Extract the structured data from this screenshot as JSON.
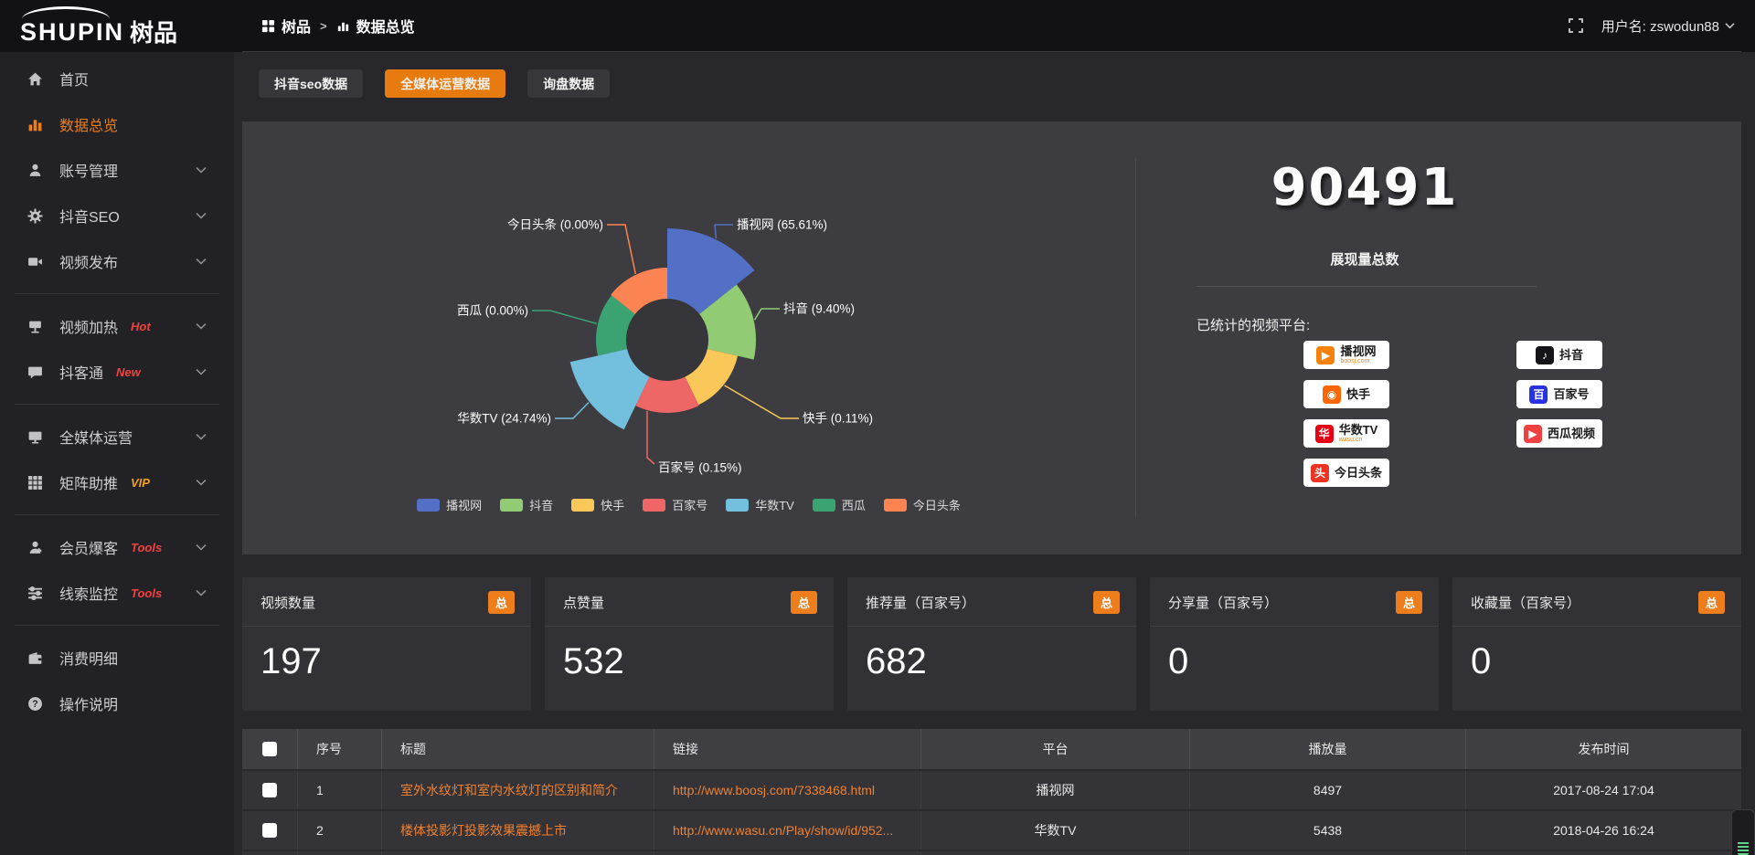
{
  "topbar": {
    "logo_en": "SHUPIN",
    "logo_cn": "树品",
    "breadcrumb": [
      {
        "label": "树品"
      },
      {
        "label": "数据总览"
      }
    ],
    "username": "用户名: zswodun88"
  },
  "sidebar": {
    "items": [
      {
        "id": "home",
        "label": "首页",
        "icon": "home-icon"
      },
      {
        "id": "data-overview",
        "label": "数据总览",
        "icon": "bar-chart-icon",
        "active": true
      },
      {
        "id": "account-manage",
        "label": "账号管理",
        "icon": "user-icon",
        "chevron": true
      },
      {
        "id": "douyin-seo",
        "label": "抖音SEO",
        "icon": "gear-icon",
        "chevron": true
      },
      {
        "id": "video-publish",
        "label": "视频发布",
        "icon": "video-icon",
        "chevron": true
      },
      {
        "divider": true
      },
      {
        "id": "video-heat",
        "label": "视频加热",
        "icon": "projector-icon",
        "badge": "Hot",
        "badge_color": "#f5413e",
        "chevron": true
      },
      {
        "id": "douketong",
        "label": "抖客通",
        "icon": "chat-icon",
        "badge": "New",
        "badge_color": "#f5413e",
        "chevron": true
      },
      {
        "divider": true
      },
      {
        "id": "media-operation",
        "label": "全媒体运营",
        "icon": "monitor-icon",
        "chevron": true
      },
      {
        "id": "matrix-boost",
        "label": "矩阵助推",
        "icon": "grid-icon",
        "badge": "VIP",
        "badge_color": "#f0a01e",
        "chevron": true
      },
      {
        "divider": true
      },
      {
        "id": "member-burst",
        "label": "会员爆客",
        "icon": "person-icon",
        "badge": "Tools",
        "badge_color": "#f5413e",
        "chevron": true
      },
      {
        "id": "lead-monitor",
        "label": "线索监控",
        "icon": "sliders-icon",
        "badge": "Tools",
        "badge_color": "#f5413e",
        "chevron": true
      },
      {
        "divider": true
      },
      {
        "id": "consume-detail",
        "label": "消费明细",
        "icon": "wallet-icon"
      },
      {
        "id": "instructions",
        "label": "操作说明",
        "icon": "help-icon"
      }
    ]
  },
  "tabs": [
    {
      "label": "抖音seo数据",
      "active": false
    },
    {
      "label": "全媒体运营数据",
      "active": true
    },
    {
      "label": "询盘数据",
      "active": false
    }
  ],
  "chart_data": {
    "type": "pie",
    "subtype": "nightingale-rose",
    "label_format": "{name} ({pct}%)",
    "legend_position": "bottom",
    "data": [
      {
        "name": "播视网",
        "pct": "65.61",
        "color": "#5470c6"
      },
      {
        "name": "抖音",
        "pct": "9.40",
        "color": "#91cc75"
      },
      {
        "name": "快手",
        "pct": "0.11",
        "color": "#fac858"
      },
      {
        "name": "百家号",
        "pct": "0.15",
        "color": "#ee6666"
      },
      {
        "name": "华数TV",
        "pct": "24.74",
        "color": "#73c0de"
      },
      {
        "name": "西瓜",
        "pct": "0.00",
        "color": "#3ba272"
      },
      {
        "name": "今日头条",
        "pct": "0.00",
        "color": "#fc8452"
      }
    ],
    "legend": [
      "播视网",
      "抖音",
      "快手",
      "百家号",
      "华数TV",
      "西瓜",
      "今日头条"
    ]
  },
  "summary": {
    "total": "90491",
    "total_label": "展现量总数",
    "platforms_label": "已统计的视频平台:",
    "platform_columns": [
      [
        {
          "id": "boosj",
          "name": "播视网",
          "sub": "boosj.com",
          "color": "#f5820b",
          "glyph": "▶"
        },
        {
          "id": "kuaishou",
          "name": "快手",
          "color": "#ff6600",
          "glyph": "◉"
        },
        {
          "id": "wasu-tv",
          "name": "华数TV",
          "sub": "wasu.cn",
          "color": "#e60012",
          "glyph": "华"
        },
        {
          "id": "toutiao",
          "name": "今日头条",
          "color": "#ed3321",
          "glyph": "头"
        }
      ],
      [
        {
          "id": "douyin",
          "name": "抖音",
          "color": "#151519",
          "glyph": "♪"
        },
        {
          "id": "baijiahao",
          "name": "百家号",
          "color": "#2932e1",
          "glyph": "百"
        },
        {
          "id": "xigua",
          "name": "西瓜视频",
          "color": "#f04142",
          "glyph": "▶"
        }
      ]
    ]
  },
  "stat_cards": [
    {
      "title": "视频数量",
      "badge": "总",
      "value": "197"
    },
    {
      "title": "点赞量",
      "badge": "总",
      "value": "532"
    },
    {
      "title": "推荐量（百家号）",
      "badge": "总",
      "value": "682"
    },
    {
      "title": "分享量（百家号）",
      "badge": "总",
      "value": "0"
    },
    {
      "title": "收藏量（百家号）",
      "badge": "总",
      "value": "0"
    }
  ],
  "table": {
    "headers": [
      "",
      "序号",
      "标题",
      "链接",
      "平台",
      "播放量",
      "发布时间"
    ],
    "rows": [
      {
        "no": "1",
        "title": "室外水纹灯和室内水纹灯的区别和简介",
        "link": "http://www.boosj.com/7338468.html",
        "platform": "播视网",
        "plays": "8497",
        "published": "2017-08-24 17:04"
      },
      {
        "no": "2",
        "title": "楼体投影灯投影效果震撼上市",
        "link": "http://www.wasu.cn/Play/show/id/952...",
        "platform": "华数TV",
        "plays": "5438",
        "published": "2018-04-26 16:24"
      }
    ]
  },
  "accent_color": "#ee7d1c",
  "link_color": "#ef8232"
}
